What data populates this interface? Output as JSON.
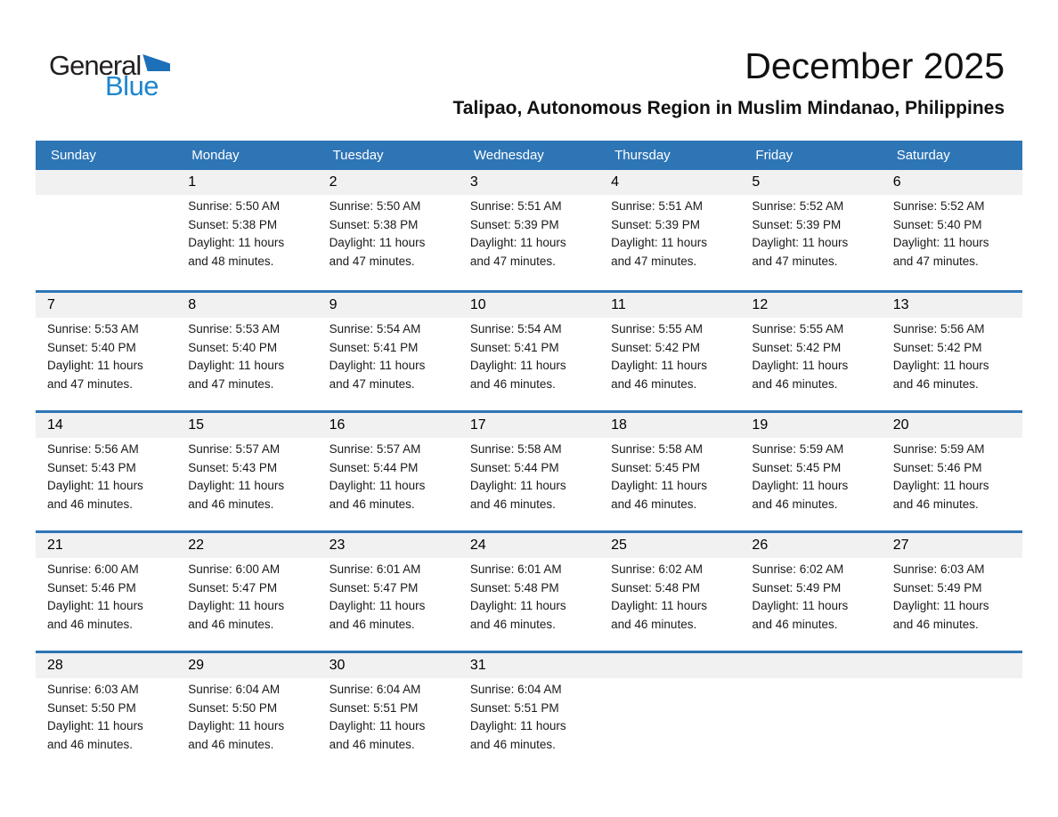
{
  "logo": {
    "line1": "General",
    "line2": "Blue"
  },
  "header": {
    "title": "December 2025",
    "subtitle": "Talipao, Autonomous Region in Muslim Mindanao, Philippines"
  },
  "colors": {
    "header_bg": "#2E75B6",
    "week_divider": "#2E75B6",
    "day_band_bg": "#F1F1F1",
    "day_header_text": "#FFFFFF",
    "logo_text_blue": "#1E86CD",
    "logo_triangle_blue": "#1D70B8",
    "logo_text_black": "#231F20"
  },
  "calendar": {
    "day_headers": [
      "Sunday",
      "Monday",
      "Tuesday",
      "Wednesday",
      "Thursday",
      "Friday",
      "Saturday"
    ],
    "weeks": [
      [
        null,
        {
          "day": "1",
          "lines": [
            "Sunrise: 5:50 AM",
            "Sunset: 5:38 PM",
            "Daylight: 11 hours",
            "and 48 minutes."
          ]
        },
        {
          "day": "2",
          "lines": [
            "Sunrise: 5:50 AM",
            "Sunset: 5:38 PM",
            "Daylight: 11 hours",
            "and 47 minutes."
          ]
        },
        {
          "day": "3",
          "lines": [
            "Sunrise: 5:51 AM",
            "Sunset: 5:39 PM",
            "Daylight: 11 hours",
            "and 47 minutes."
          ]
        },
        {
          "day": "4",
          "lines": [
            "Sunrise: 5:51 AM",
            "Sunset: 5:39 PM",
            "Daylight: 11 hours",
            "and 47 minutes."
          ]
        },
        {
          "day": "5",
          "lines": [
            "Sunrise: 5:52 AM",
            "Sunset: 5:39 PM",
            "Daylight: 11 hours",
            "and 47 minutes."
          ]
        },
        {
          "day": "6",
          "lines": [
            "Sunrise: 5:52 AM",
            "Sunset: 5:40 PM",
            "Daylight: 11 hours",
            "and 47 minutes."
          ]
        }
      ],
      [
        {
          "day": "7",
          "lines": [
            "Sunrise: 5:53 AM",
            "Sunset: 5:40 PM",
            "Daylight: 11 hours",
            "and 47 minutes."
          ]
        },
        {
          "day": "8",
          "lines": [
            "Sunrise: 5:53 AM",
            "Sunset: 5:40 PM",
            "Daylight: 11 hours",
            "and 47 minutes."
          ]
        },
        {
          "day": "9",
          "lines": [
            "Sunrise: 5:54 AM",
            "Sunset: 5:41 PM",
            "Daylight: 11 hours",
            "and 47 minutes."
          ]
        },
        {
          "day": "10",
          "lines": [
            "Sunrise: 5:54 AM",
            "Sunset: 5:41 PM",
            "Daylight: 11 hours",
            "and 46 minutes."
          ]
        },
        {
          "day": "11",
          "lines": [
            "Sunrise: 5:55 AM",
            "Sunset: 5:42 PM",
            "Daylight: 11 hours",
            "and 46 minutes."
          ]
        },
        {
          "day": "12",
          "lines": [
            "Sunrise: 5:55 AM",
            "Sunset: 5:42 PM",
            "Daylight: 11 hours",
            "and 46 minutes."
          ]
        },
        {
          "day": "13",
          "lines": [
            "Sunrise: 5:56 AM",
            "Sunset: 5:42 PM",
            "Daylight: 11 hours",
            "and 46 minutes."
          ]
        }
      ],
      [
        {
          "day": "14",
          "lines": [
            "Sunrise: 5:56 AM",
            "Sunset: 5:43 PM",
            "Daylight: 11 hours",
            "and 46 minutes."
          ]
        },
        {
          "day": "15",
          "lines": [
            "Sunrise: 5:57 AM",
            "Sunset: 5:43 PM",
            "Daylight: 11 hours",
            "and 46 minutes."
          ]
        },
        {
          "day": "16",
          "lines": [
            "Sunrise: 5:57 AM",
            "Sunset: 5:44 PM",
            "Daylight: 11 hours",
            "and 46 minutes."
          ]
        },
        {
          "day": "17",
          "lines": [
            "Sunrise: 5:58 AM",
            "Sunset: 5:44 PM",
            "Daylight: 11 hours",
            "and 46 minutes."
          ]
        },
        {
          "day": "18",
          "lines": [
            "Sunrise: 5:58 AM",
            "Sunset: 5:45 PM",
            "Daylight: 11 hours",
            "and 46 minutes."
          ]
        },
        {
          "day": "19",
          "lines": [
            "Sunrise: 5:59 AM",
            "Sunset: 5:45 PM",
            "Daylight: 11 hours",
            "and 46 minutes."
          ]
        },
        {
          "day": "20",
          "lines": [
            "Sunrise: 5:59 AM",
            "Sunset: 5:46 PM",
            "Daylight: 11 hours",
            "and 46 minutes."
          ]
        }
      ],
      [
        {
          "day": "21",
          "lines": [
            "Sunrise: 6:00 AM",
            "Sunset: 5:46 PM",
            "Daylight: 11 hours",
            "and 46 minutes."
          ]
        },
        {
          "day": "22",
          "lines": [
            "Sunrise: 6:00 AM",
            "Sunset: 5:47 PM",
            "Daylight: 11 hours",
            "and 46 minutes."
          ]
        },
        {
          "day": "23",
          "lines": [
            "Sunrise: 6:01 AM",
            "Sunset: 5:47 PM",
            "Daylight: 11 hours",
            "and 46 minutes."
          ]
        },
        {
          "day": "24",
          "lines": [
            "Sunrise: 6:01 AM",
            "Sunset: 5:48 PM",
            "Daylight: 11 hours",
            "and 46 minutes."
          ]
        },
        {
          "day": "25",
          "lines": [
            "Sunrise: 6:02 AM",
            "Sunset: 5:48 PM",
            "Daylight: 11 hours",
            "and 46 minutes."
          ]
        },
        {
          "day": "26",
          "lines": [
            "Sunrise: 6:02 AM",
            "Sunset: 5:49 PM",
            "Daylight: 11 hours",
            "and 46 minutes."
          ]
        },
        {
          "day": "27",
          "lines": [
            "Sunrise: 6:03 AM",
            "Sunset: 5:49 PM",
            "Daylight: 11 hours",
            "and 46 minutes."
          ]
        }
      ],
      [
        {
          "day": "28",
          "lines": [
            "Sunrise: 6:03 AM",
            "Sunset: 5:50 PM",
            "Daylight: 11 hours",
            "and 46 minutes."
          ]
        },
        {
          "day": "29",
          "lines": [
            "Sunrise: 6:04 AM",
            "Sunset: 5:50 PM",
            "Daylight: 11 hours",
            "and 46 minutes."
          ]
        },
        {
          "day": "30",
          "lines": [
            "Sunrise: 6:04 AM",
            "Sunset: 5:51 PM",
            "Daylight: 11 hours",
            "and 46 minutes."
          ]
        },
        {
          "day": "31",
          "lines": [
            "Sunrise: 6:04 AM",
            "Sunset: 5:51 PM",
            "Daylight: 11 hours",
            "and 46 minutes."
          ]
        },
        null,
        null,
        null
      ]
    ]
  }
}
